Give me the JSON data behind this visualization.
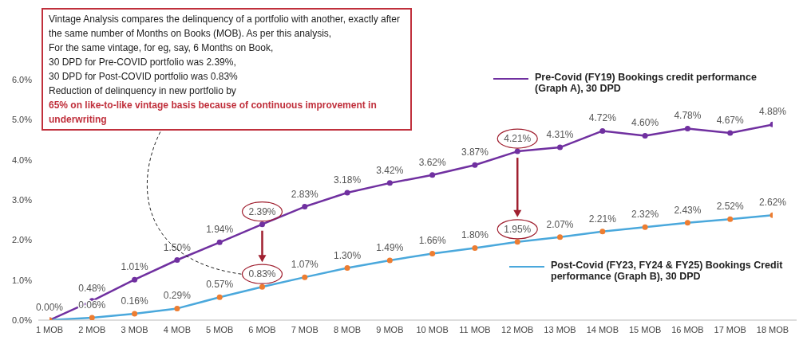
{
  "chart_data": {
    "type": "line",
    "categories": [
      "1 MOB",
      "2 MOB",
      "3 MOB",
      "4 MOB",
      "5 MOB",
      "6 MOB",
      "7 MOB",
      "8 MOB",
      "9 MOB",
      "10 MOB",
      "11 MOB",
      "12 MOB",
      "13 MOB",
      "14 MOB",
      "15 MOB",
      "16 MOB",
      "17 MOB",
      "18 MOB"
    ],
    "series": [
      {
        "name": "Pre-Covid (FY19) Bookings credit performance (Graph A), 30 DPD",
        "color": "#7030a0",
        "values": [
          0.0,
          0.48,
          1.01,
          1.5,
          1.94,
          2.39,
          2.83,
          3.18,
          3.42,
          3.62,
          3.87,
          4.21,
          4.31,
          4.72,
          4.6,
          4.78,
          4.67,
          4.88
        ],
        "value_labels": [
          "0.00%",
          "0.48%",
          "1.01%",
          "1.50%",
          "1.94%",
          "2.39%",
          "2.83%",
          "3.18%",
          "3.42%",
          "3.62%",
          "3.87%",
          "4.21%",
          "4.31%",
          "4.72%",
          "4.60%",
          "4.78%",
          "4.67%",
          "4.88%"
        ]
      },
      {
        "name": "Post-Covid (FY23, FY24 & FY25) Bookings Credit performance (Graph B), 30 DPD",
        "color": "#4aa8dc",
        "colors": [
          "#ed7d31",
          "#ed7d31",
          "#ed7d31",
          "#ed7d31",
          "#ed7d31",
          "#ed7d31",
          "#ed7d31",
          "#ed7d31",
          "#ed7d31",
          "#ed7d31",
          "#ed7d31",
          "#ed7d31",
          "#ed7d31",
          "#ed7d31",
          "#ed7d31",
          "#ed7d31",
          "#ed7d31",
          "#ed7d31"
        ],
        "values": [
          0.0,
          0.06,
          0.16,
          0.29,
          0.57,
          0.83,
          1.07,
          1.3,
          1.49,
          1.66,
          1.8,
          1.95,
          2.07,
          2.21,
          2.32,
          2.43,
          2.52,
          2.62
        ],
        "value_labels": [
          null,
          "0.06%",
          "0.16%",
          "0.29%",
          "0.57%",
          "0.83%",
          "1.07%",
          "1.30%",
          "1.49%",
          "1.66%",
          "1.80%",
          "1.95%",
          "2.07%",
          "2.21%",
          "2.32%",
          "2.43%",
          "2.52%",
          "2.62%"
        ]
      }
    ],
    "annotations": [
      "Vintage Analysis compares the delinquency of a portfolio with another, exactly after the same number of Months on Books (MOB). As per this analysis,\nFor the same vintage, for eg, say, 6 Months on Book,\n30 DPD for Pre-COVID portfolio was 2.39%,\n30 DPD for Post-COVID portfolio was 0.83%\nReduction of delinquency in new portfolio by",
      "65% on like-to-like vintage basis because of continuous improvement in underwriting"
    ],
    "ylim": [
      0,
      6
    ],
    "yticks": [
      {
        "value": 0,
        "label": "0.0%"
      },
      {
        "value": 1,
        "label": "1.0%"
      },
      {
        "value": 2,
        "label": "2.0%"
      },
      {
        "value": 3,
        "label": "3.0%"
      },
      {
        "value": 4,
        "label": "4.0%"
      },
      {
        "value": 5,
        "label": "5.0%"
      },
      {
        "value": 6,
        "label": "6.0%"
      }
    ],
    "grid": false,
    "legend": "right",
    "marker": "circle",
    "line_style": "solid"
  }
}
